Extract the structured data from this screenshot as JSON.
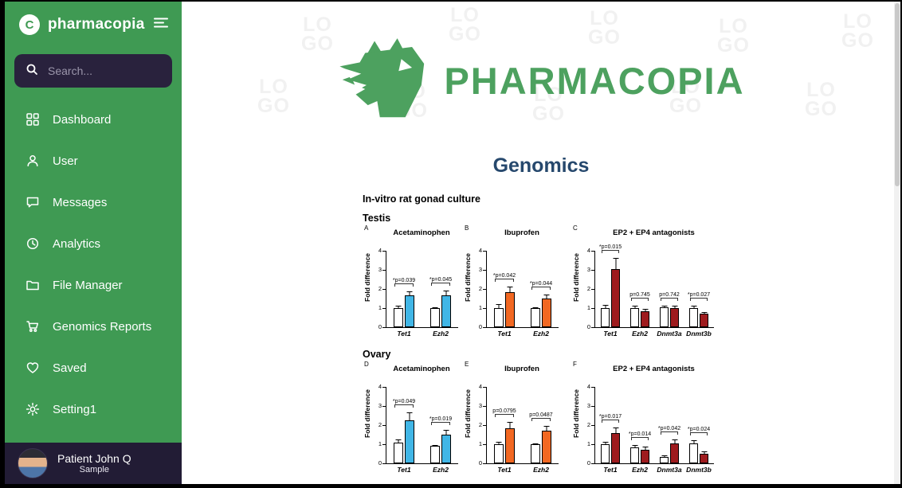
{
  "sidebar": {
    "brand": {
      "name": "pharmacopia",
      "initial": "C"
    },
    "search": {
      "placeholder": "Search..."
    },
    "items": [
      {
        "label": "Dashboard"
      },
      {
        "label": "User"
      },
      {
        "label": "Messages"
      },
      {
        "label": "Analytics"
      },
      {
        "label": "File Manager"
      },
      {
        "label": "Genomics Reports"
      },
      {
        "label": "Saved"
      },
      {
        "label": "Setting1"
      }
    ],
    "profile": {
      "name": "Patient John Q",
      "subtitle": "Sample"
    }
  },
  "main": {
    "logo": {
      "text": "PHARMACOPIA",
      "watermark_line1": "LO",
      "watermark_line2": "GO"
    },
    "heading": "Genomics",
    "figure": {
      "caption": "In-vitro rat gonad culture",
      "row1_label": "Testis",
      "row2_label": "Ovary"
    }
  },
  "colors": {
    "sidebar_green": "#3f9a53",
    "footer_navy": "#221c35",
    "search_navy": "#29223d",
    "brand_green": "#4da15f",
    "heading_navy": "#26486d",
    "acetaminophen_blue": "#41b6e6",
    "ibuprofen_orange": "#f26822",
    "antagonist_red": "#9e1b1e"
  },
  "chart_data": [
    {
      "panel": "A",
      "group": "Testis",
      "type": "bar",
      "title": "Acetaminophen",
      "ylabel": "Fold difference",
      "ylim": [
        0,
        4
      ],
      "yticks": [
        0,
        1,
        2,
        3,
        4
      ],
      "categories": [
        "Tet1",
        "Ezh2"
      ],
      "control_color": "#ffffff",
      "treated_color": "#41b6e6",
      "series": [
        {
          "name": "control",
          "values": [
            1.0,
            1.0
          ],
          "errors": [
            0.15,
            0.1
          ]
        },
        {
          "name": "treated",
          "values": [
            1.65,
            1.65
          ],
          "errors": [
            0.25,
            0.3
          ]
        }
      ],
      "annotations": [
        "*p=0.039",
        "*p=0.045"
      ]
    },
    {
      "panel": "B",
      "group": "Testis",
      "type": "bar",
      "title": "Ibuprofen",
      "ylabel": "Fold difference",
      "ylim": [
        0,
        4
      ],
      "yticks": [
        0,
        1,
        2,
        3,
        4
      ],
      "categories": [
        "Tet1",
        "Ezh2"
      ],
      "control_color": "#ffffff",
      "treated_color": "#f26822",
      "series": [
        {
          "name": "control",
          "values": [
            1.0,
            1.0
          ],
          "errors": [
            0.25,
            0.1
          ]
        },
        {
          "name": "treated",
          "values": [
            1.85,
            1.5
          ],
          "errors": [
            0.3,
            0.25
          ]
        }
      ],
      "annotations": [
        "*p=0.042",
        "*p=0.044"
      ]
    },
    {
      "panel": "C",
      "group": "Testis",
      "type": "bar",
      "title": "EP2 + EP4 antagonists",
      "ylabel": "Fold difference",
      "ylim": [
        0,
        4
      ],
      "yticks": [
        0,
        1,
        2,
        3,
        4
      ],
      "categories": [
        "Tet1",
        "Ezh2",
        "Dnmt3a",
        "Dnmt3b"
      ],
      "control_color": "#ffffff",
      "treated_color": "#9e1b1e",
      "series": [
        {
          "name": "control",
          "values": [
            1.0,
            1.0,
            1.05,
            1.0
          ],
          "errors": [
            0.2,
            0.15,
            0.1,
            0.15
          ]
        },
        {
          "name": "treated",
          "values": [
            3.05,
            0.85,
            1.0,
            0.7
          ],
          "errors": [
            0.6,
            0.15,
            0.15,
            0.15
          ]
        }
      ],
      "annotations": [
        "*p=0.015",
        "p=0.745",
        "p=0.742",
        "*p=0.027"
      ]
    },
    {
      "panel": "D",
      "group": "Ovary",
      "type": "bar",
      "title": "Acetaminophen",
      "ylabel": "Fold difference",
      "ylim": [
        0,
        4
      ],
      "yticks": [
        0,
        1,
        2,
        3,
        4
      ],
      "categories": [
        "Tet1",
        "Ezh2"
      ],
      "control_color": "#ffffff",
      "treated_color": "#41b6e6",
      "series": [
        {
          "name": "control",
          "values": [
            1.1,
            0.9
          ],
          "errors": [
            0.2,
            0.1
          ]
        },
        {
          "name": "treated",
          "values": [
            2.25,
            1.5
          ],
          "errors": [
            0.45,
            0.3
          ]
        }
      ],
      "annotations": [
        "*p=0.049",
        "*p=0.019"
      ]
    },
    {
      "panel": "E",
      "group": "Ovary",
      "type": "bar",
      "title": "Ibuprofen",
      "ylabel": "Fold difference",
      "ylim": [
        0,
        4
      ],
      "yticks": [
        0,
        1,
        2,
        3,
        4
      ],
      "categories": [
        "Tet1",
        "Ezh2"
      ],
      "control_color": "#ffffff",
      "treated_color": "#f26822",
      "series": [
        {
          "name": "control",
          "values": [
            1.0,
            1.0
          ],
          "errors": [
            0.15,
            0.1
          ]
        },
        {
          "name": "treated",
          "values": [
            1.85,
            1.7
          ],
          "errors": [
            0.35,
            0.3
          ]
        }
      ],
      "annotations": [
        "p=0.0795",
        "p=0.0487"
      ]
    },
    {
      "panel": "F",
      "group": "Ovary",
      "type": "bar",
      "title": "EP2 + EP4 antagonists",
      "ylabel": "Fold difference",
      "ylim": [
        0,
        4
      ],
      "yticks": [
        0,
        1,
        2,
        3,
        4
      ],
      "categories": [
        "Tet1",
        "Ezh2",
        "Dnmt3a",
        "Dnmt3b"
      ],
      "control_color": "#ffffff",
      "treated_color": "#9e1b1e",
      "series": [
        {
          "name": "control",
          "values": [
            1.0,
            0.85,
            0.35,
            1.05
          ],
          "errors": [
            0.15,
            0.15,
            0.1,
            0.2
          ]
        },
        {
          "name": "treated",
          "values": [
            1.6,
            0.7,
            1.05,
            0.5
          ],
          "errors": [
            0.3,
            0.2,
            0.25,
            0.15
          ]
        }
      ],
      "annotations": [
        "*p=0.017",
        "*p=0.014",
        "*p=0.042",
        "*p=0.024"
      ]
    }
  ]
}
